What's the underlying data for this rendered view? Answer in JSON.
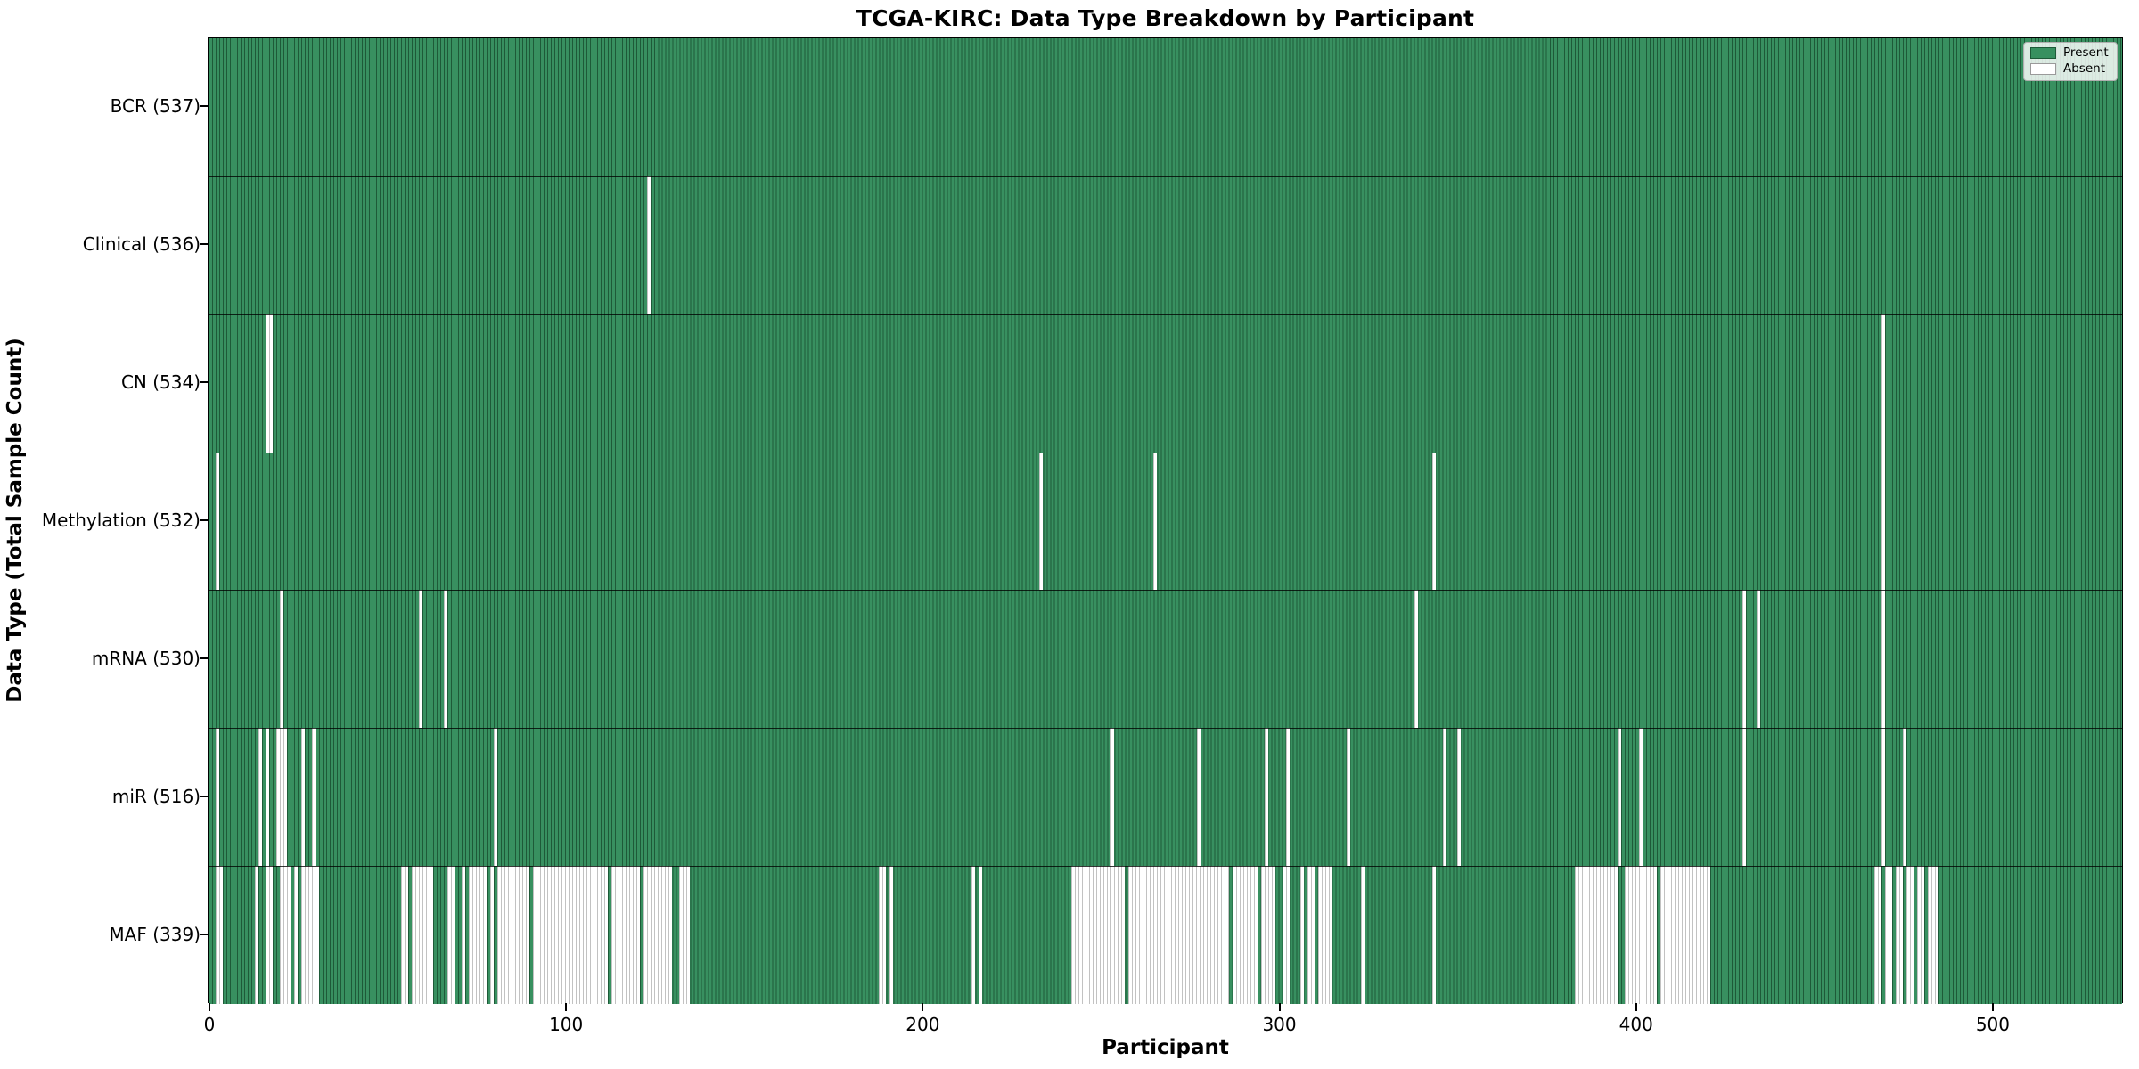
{
  "figure": {
    "title": "TCGA-KIRC: Data Type Breakdown by Participant"
  },
  "axes": {
    "x_label": "Participant",
    "y_label": "Data Type (Total Sample Count)",
    "x_ticks": [
      0,
      100,
      200,
      300,
      400,
      500
    ]
  },
  "legend": {
    "present_label": "Present",
    "absent_label": "Absent"
  },
  "colors": {
    "present_fill": "#389060",
    "present_edge": "#1e5a38",
    "absent_fill": "#ffffff",
    "absent_edge": "#c2c2c2"
  },
  "chart_data": {
    "type": "heatmap",
    "title": "TCGA-KIRC: Data Type Breakdown by Participant",
    "xlabel": "Participant",
    "ylabel": "Data Type (Total Sample Count)",
    "x_ticks": [
      0,
      100,
      200,
      300,
      400,
      500
    ],
    "x_range": [
      0,
      537
    ],
    "n_participants": 537,
    "legend_entries": [
      "Present",
      "Absent"
    ],
    "legend_position": "upper right",
    "rows": [
      {
        "label": "BCR (537)",
        "data_type": "BCR",
        "present_total": 537,
        "absent_runs": []
      },
      {
        "label": "Clinical (536)",
        "data_type": "Clinical",
        "present_total": 536,
        "absent_runs": [
          [
            123,
            123
          ]
        ]
      },
      {
        "label": "CN (534)",
        "data_type": "CN",
        "present_total": 534,
        "absent_runs": [
          [
            16,
            17
          ],
          [
            469,
            469
          ]
        ]
      },
      {
        "label": "Methylation (532)",
        "data_type": "Methylation",
        "present_total": 532,
        "absent_runs": [
          [
            2,
            2
          ],
          [
            233,
            233
          ],
          [
            265,
            265
          ],
          [
            343,
            343
          ],
          [
            469,
            469
          ]
        ]
      },
      {
        "label": "mRNA (530)",
        "data_type": "mRNA",
        "present_total": 530,
        "absent_runs": [
          [
            20,
            20
          ],
          [
            59,
            59
          ],
          [
            66,
            66
          ],
          [
            338,
            338
          ],
          [
            430,
            430
          ],
          [
            434,
            434
          ],
          [
            469,
            469
          ]
        ]
      },
      {
        "label": "miR (516)",
        "data_type": "miR",
        "present_total": 516,
        "absent_runs": [
          [
            2,
            2
          ],
          [
            14,
            14
          ],
          [
            16,
            16
          ],
          [
            19,
            21
          ],
          [
            26,
            26
          ],
          [
            29,
            29
          ],
          [
            80,
            80
          ],
          [
            253,
            253
          ],
          [
            277,
            277
          ],
          [
            296,
            296
          ],
          [
            302,
            302
          ],
          [
            319,
            319
          ],
          [
            346,
            346
          ],
          [
            350,
            350
          ],
          [
            395,
            395
          ],
          [
            401,
            401
          ],
          [
            430,
            430
          ],
          [
            469,
            469
          ],
          [
            475,
            475
          ]
        ]
      },
      {
        "label": "MAF (339)",
        "data_type": "MAF",
        "present_total": 339,
        "absent_runs": [
          [
            2,
            3
          ],
          [
            13,
            13
          ],
          [
            16,
            17
          ],
          [
            20,
            22
          ],
          [
            24,
            24
          ],
          [
            26,
            30
          ],
          [
            54,
            55
          ],
          [
            57,
            62
          ],
          [
            67,
            68
          ],
          [
            71,
            71
          ],
          [
            73,
            77
          ],
          [
            79,
            79
          ],
          [
            81,
            89
          ],
          [
            91,
            111
          ],
          [
            113,
            120
          ],
          [
            122,
            129
          ],
          [
            132,
            134
          ],
          [
            188,
            189
          ],
          [
            191,
            191
          ],
          [
            214,
            214
          ],
          [
            216,
            216
          ],
          [
            242,
            256
          ],
          [
            258,
            285
          ],
          [
            287,
            293
          ],
          [
            295,
            298
          ],
          [
            301,
            302
          ],
          [
            306,
            306
          ],
          [
            308,
            309
          ],
          [
            311,
            314
          ],
          [
            323,
            323
          ],
          [
            343,
            343
          ],
          [
            383,
            394
          ],
          [
            397,
            405
          ],
          [
            407,
            420
          ],
          [
            467,
            468
          ],
          [
            470,
            471
          ],
          [
            473,
            474
          ],
          [
            476,
            477
          ],
          [
            479,
            480
          ],
          [
            482,
            484
          ]
        ]
      }
    ]
  }
}
